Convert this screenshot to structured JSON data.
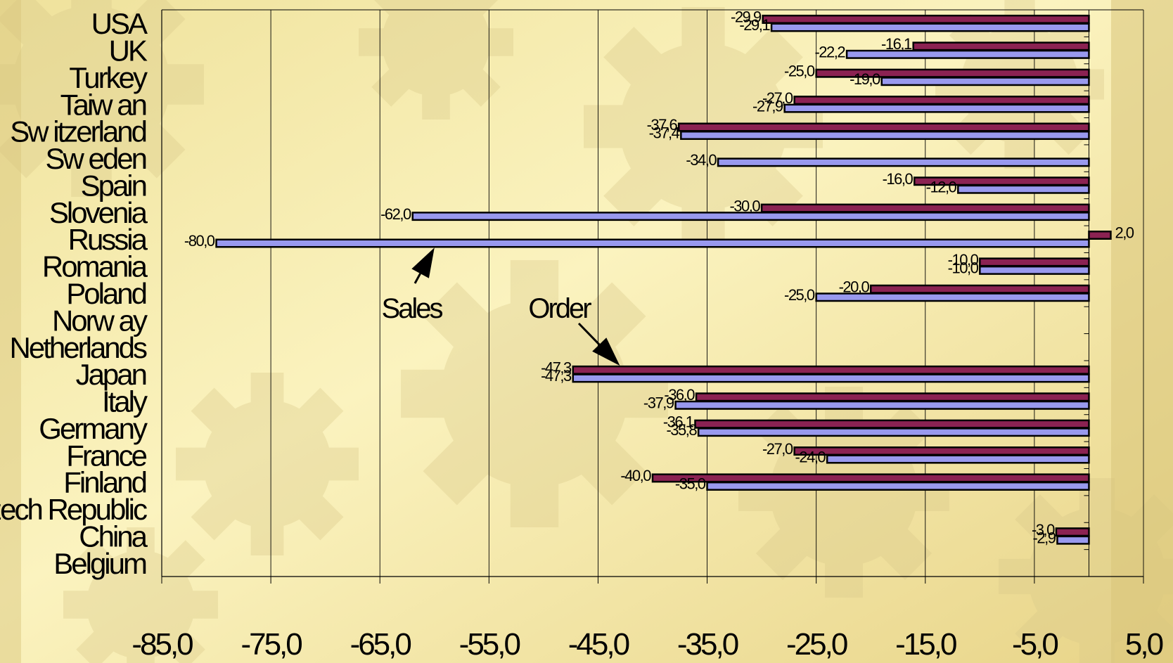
{
  "chart_data": {
    "type": "bar",
    "orientation": "horizontal",
    "categories": [
      "USA",
      "UK",
      "Turkey",
      "Taiw an",
      "Sw itzerland",
      "Sw eden",
      "Spain",
      "Slovenia",
      "Russia",
      "Romania",
      "Poland",
      "Norw ay",
      "Netherlands",
      "Japan",
      "Italy",
      "Germany",
      "France",
      "Finland",
      "Czech Republic",
      "China",
      "Belgium"
    ],
    "series": [
      {
        "color": "#8b2252",
        "values": [
          -29.9,
          -16.1,
          -25.0,
          -27.0,
          -37.6,
          null,
          -16.0,
          -30.0,
          2.0,
          -10.0,
          -20.0,
          null,
          null,
          -47.3,
          -36.0,
          -36.1,
          -27.0,
          -40.0,
          null,
          -3.0,
          null
        ],
        "labels": [
          "-29,9",
          "-16,1",
          "-25,0",
          "-27,0",
          "-37,6",
          "",
          "-16,0",
          "-30,0",
          "2,0",
          "-10,0",
          "-20,0",
          "",
          "",
          "-47,3",
          "-36,0",
          "-36,1",
          "-27,0",
          "-40,0",
          "",
          "-3,0",
          ""
        ]
      },
      {
        "color": "#9999ee",
        "values": [
          -29.1,
          -22.2,
          -19.0,
          -27.9,
          -37.4,
          -34.0,
          -12.0,
          -62.0,
          -80.0,
          -10.0,
          -25.0,
          null,
          null,
          -47.3,
          -37.9,
          -35.8,
          -24.0,
          -35.0,
          null,
          -2.9,
          null
        ],
        "labels": [
          "-29,1",
          "-22,2",
          "-19,0",
          "-27,9",
          "-37,4",
          "-34,0",
          "-12,0",
          "-62,0",
          "-80,0",
          "-10,0",
          "-25,0",
          "",
          "",
          "-47,3",
          "-37,9",
          "-35,8",
          "-24,0",
          "-35,0",
          "",
          "-2,9",
          ""
        ]
      }
    ],
    "xlim": [
      -85,
      5
    ],
    "xticks": [
      -85,
      -75,
      -65,
      -55,
      -45,
      -35,
      -25,
      -15,
      -5,
      5
    ],
    "xtick_labels": [
      "-85,0",
      "-75,0",
      "-65,0",
      "-55,0",
      "-45,0",
      "-35,0",
      "-25,0",
      "-15,0",
      "-5,0",
      "5,0"
    ],
    "grid": "vertical",
    "annotations": [
      {
        "text": "Sales",
        "points_to_series": 1,
        "points_to_category": "Russia",
        "points_to_value": -60
      },
      {
        "text": "Order",
        "points_to_series": 0,
        "points_to_category": "Japan",
        "points_to_value": -43
      }
    ]
  }
}
